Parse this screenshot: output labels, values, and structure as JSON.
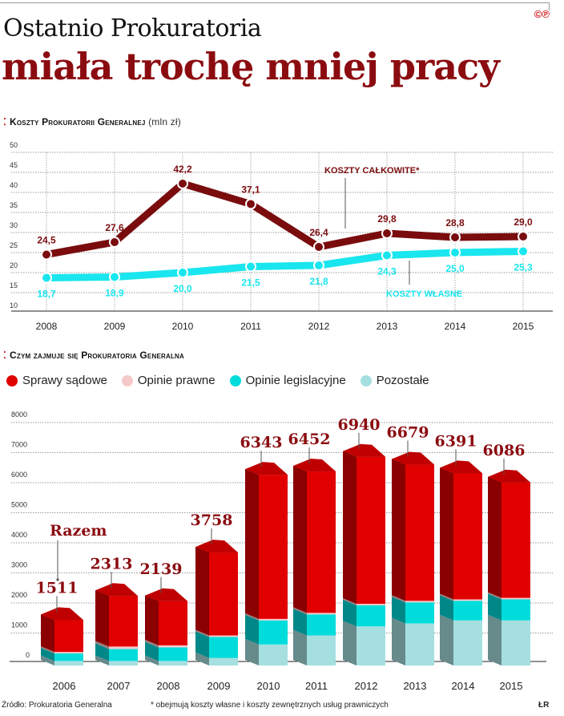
{
  "header": {
    "title_line1": "Ostatnio Prokuratoria",
    "title_line2": "miała trochę mniej pracy",
    "logo": "©℗"
  },
  "footer": {
    "source": "Źródło: Prokuratoria Generalna",
    "note": "* obejmują koszty własne i koszty zewnętrznych usług prawniczych",
    "credit": "ŁR"
  },
  "chart_data": [
    {
      "type": "line",
      "title": "Koszty Prokuratorii Generalnej",
      "unit": "(mln zł)",
      "x": [
        "2008",
        "2009",
        "2010",
        "2011",
        "2012",
        "2013",
        "2014",
        "2015"
      ],
      "ylim": [
        10,
        50
      ],
      "yticks": [
        10,
        15,
        20,
        25,
        30,
        35,
        40,
        45,
        50
      ],
      "grid": true,
      "series": [
        {
          "name": "KOSZTY CAŁKOWITE*",
          "values": [
            24.5,
            27.6,
            42.2,
            37.1,
            26.4,
            29.8,
            28.8,
            29.0
          ],
          "labels": [
            "24,5",
            "27,6",
            "42,2",
            "37,1",
            "26,4",
            "29,8",
            "28,8",
            "29,0"
          ],
          "color": "#7a0c0e"
        },
        {
          "name": "KOSZTY WŁASNE",
          "values": [
            18.7,
            18.9,
            20.0,
            21.5,
            21.8,
            24.3,
            25.0,
            25.3
          ],
          "labels": [
            "18,7",
            "18,9",
            "20,0",
            "21,5",
            "21,8",
            "24,3",
            "25,0",
            "25,3"
          ],
          "color": "#19e6ee"
        }
      ]
    },
    {
      "type": "bar",
      "stacked": true,
      "title": "Czym zajmuje się Prokuratoria Generalna",
      "categories": [
        "2006",
        "2007",
        "2008",
        "2009",
        "2010",
        "2011",
        "2012",
        "2013",
        "2014",
        "2015"
      ],
      "ylim": [
        0,
        8000
      ],
      "yticks": [
        0,
        1000,
        2000,
        3000,
        4000,
        5000,
        6000,
        7000,
        8000
      ],
      "grid": true,
      "legend_position": "top-left",
      "totals": [
        1511,
        2313,
        2139,
        3758,
        6343,
        6452,
        6940,
        6679,
        6391,
        6086
      ],
      "total_annotation": "Razem",
      "series": [
        {
          "name": "Pozostałe",
          "values": [
            150,
            150,
            150,
            250,
            700,
            1000,
            1300,
            1400,
            1500,
            1500
          ],
          "color": "#a6dfe0"
        },
        {
          "name": "Opinie legislacyjne",
          "values": [
            250,
            400,
            450,
            700,
            800,
            700,
            700,
            700,
            650,
            700
          ],
          "color": "#00dcdc"
        },
        {
          "name": "Opinie prawne",
          "values": [
            50,
            80,
            70,
            50,
            50,
            50,
            50,
            50,
            50,
            50
          ],
          "color": "#f5c9c9"
        },
        {
          "name": "Sprawy sądowe",
          "values": [
            1061,
            1683,
            1469,
            2758,
            4793,
            4702,
            4890,
            4529,
            4191,
            3836
          ],
          "color": "#e00000"
        }
      ],
      "legend_order": [
        "Sprawy sądowe",
        "Opinie prawne",
        "Opinie legislacyjne",
        "Pozostałe"
      ]
    }
  ]
}
